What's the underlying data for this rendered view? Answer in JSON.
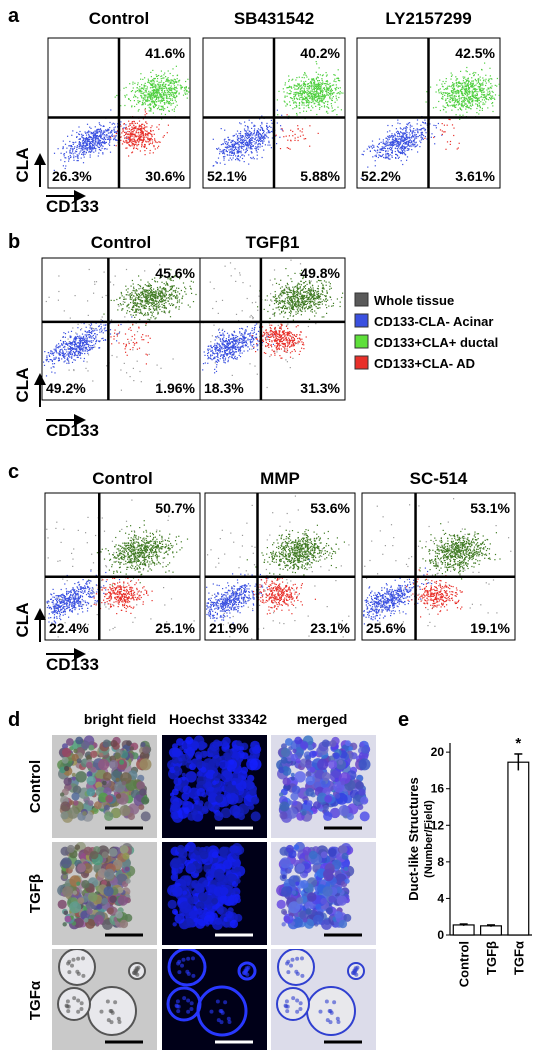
{
  "panels": {
    "a": {
      "label": "a",
      "titles": [
        "Control",
        "SB431542",
        "LY2157299"
      ],
      "plots": [
        {
          "upper_right": "41.6%",
          "lower_left": "26.3%",
          "lower_right": "30.6%"
        },
        {
          "upper_right": "40.2%",
          "lower_left": "52.1%",
          "lower_right": "5.88%"
        },
        {
          "upper_right": "42.5%",
          "lower_left": "52.2%",
          "lower_right": "3.61%"
        }
      ],
      "y_label": "CLA",
      "x_label": "CD133"
    },
    "b": {
      "label": "b",
      "titles": [
        "Control",
        "TGFβ1"
      ],
      "plots": [
        {
          "upper_right": "45.6%",
          "lower_left": "49.2%",
          "lower_right": "1.96%"
        },
        {
          "upper_right": "49.8%",
          "lower_left": "18.3%",
          "lower_right": "31.3%"
        }
      ],
      "y_label": "CLA",
      "x_label": "CD133",
      "legend": [
        "Whole tissue",
        "CD133-CLA-  Acinar",
        "CD133+CLA+  ductal",
        "CD133+CLA-  AD"
      ],
      "legend_colors": [
        "#5a5a5a",
        "#3a50e0",
        "#5ee03a",
        "#e8302a"
      ]
    },
    "c": {
      "label": "c",
      "titles": [
        "Control",
        "MMP",
        "SC-514"
      ],
      "plots": [
        {
          "upper_right": "50.7%",
          "lower_left": "22.4%",
          "lower_right": "25.1%"
        },
        {
          "upper_right": "53.6%",
          "lower_left": "21.9%",
          "lower_right": "23.1%"
        },
        {
          "upper_right": "53.1%",
          "lower_left": "25.6%",
          "lower_right": "19.1%"
        }
      ],
      "y_label": "CLA",
      "x_label": "CD133"
    },
    "d": {
      "label": "d",
      "columns": [
        "bright field",
        "Hoechst 33342",
        "merged"
      ],
      "rows": [
        "Control",
        "TGFβ",
        "TGFα"
      ]
    },
    "e": {
      "label": "e"
    }
  },
  "chart_data": {
    "type": "bar",
    "y_label": "Duct-like Structures",
    "y_label_sub": "(Number/Field)",
    "categories": [
      "Control",
      "TGFβ",
      "TGFα"
    ],
    "values": [
      1.1,
      1.0,
      18.9
    ],
    "errors": [
      0.1,
      0.1,
      0.9
    ],
    "significance": "*",
    "ylim": [
      0,
      21
    ],
    "yticks": [
      0,
      4,
      8,
      12,
      16,
      20
    ],
    "color": "#ffffff"
  }
}
